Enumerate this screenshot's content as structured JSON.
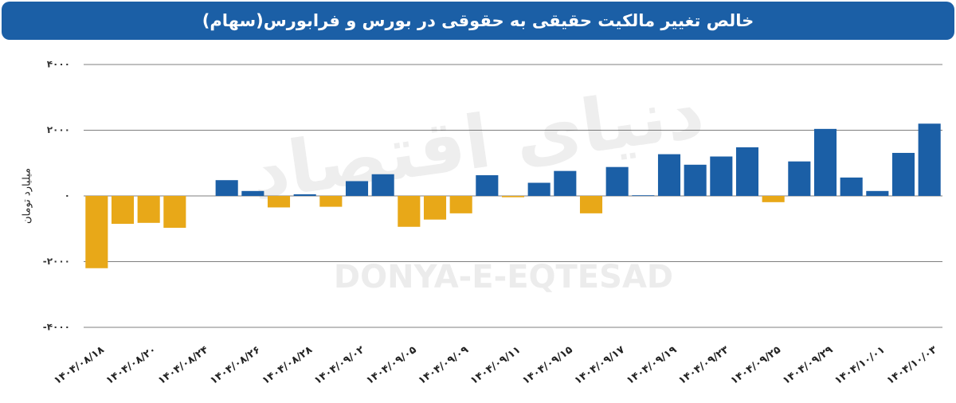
{
  "chart_data": {
    "type": "bar",
    "title": "خالص تغییر مالکیت حقیقی به حقوقی در بورس و فرابورس(سهام)",
    "y_label": "میلیارد تومان",
    "watermark": "DONYA-E-EQTESAD",
    "watermark_fa": "دنیای اقتصاد",
    "categories": [
      "۱۴۰۴/۰۸/۱۸",
      null,
      "۱۴۰۴/۰۸/۲۰",
      null,
      "۱۴۰۴/۰۸/۲۴",
      null,
      "۱۴۰۴/۰۸/۲۶",
      null,
      "۱۴۰۴/۰۸/۲۸",
      null,
      "۱۴۰۴/۰۹/۰۲",
      null,
      "۱۴۰۴/۰۹/۰۵",
      null,
      "۱۴۰۴/۰۹/۰۹",
      null,
      "۱۴۰۴/۰۹/۱۱",
      null,
      "۱۴۰۴/۰۹/۱۵",
      null,
      "۱۴۰۴/۰۹/۱۷",
      null,
      "۱۴۰۴/۰۹/۱۹",
      null,
      "۱۴۰۴/۰۹/۲۳",
      null,
      "۱۴۰۴/۰۹/۲۵",
      null,
      "۱۴۰۴/۰۹/۲۹",
      null,
      "۱۴۰۴/۱۰/۰۱",
      null,
      "۱۴۰۴/۱۰/۰۳"
    ],
    "values": [
      -2200,
      -850,
      -820,
      -970,
      null,
      480,
      150,
      -350,
      50,
      -330,
      450,
      660,
      -940,
      -720,
      -530,
      630,
      -40,
      400,
      760,
      -530,
      880,
      20,
      1270,
      950,
      1200,
      1480,
      -190,
      1050,
      2040,
      560,
      150,
      1310,
      2200
    ],
    "positive_color": "#1b5fa6",
    "negative_color": "#e8a818",
    "ylim": [
      -4000,
      4000
    ],
    "yticks": [
      {
        "value": -4000,
        "label": "-۴۰۰۰"
      },
      {
        "value": -2000,
        "label": "-۲۰۰۰"
      },
      {
        "value": 0,
        "label": "۰"
      },
      {
        "value": 2000,
        "label": "۲۰۰۰"
      },
      {
        "value": 4000,
        "label": "۴۰۰۰"
      }
    ],
    "grid": true
  }
}
